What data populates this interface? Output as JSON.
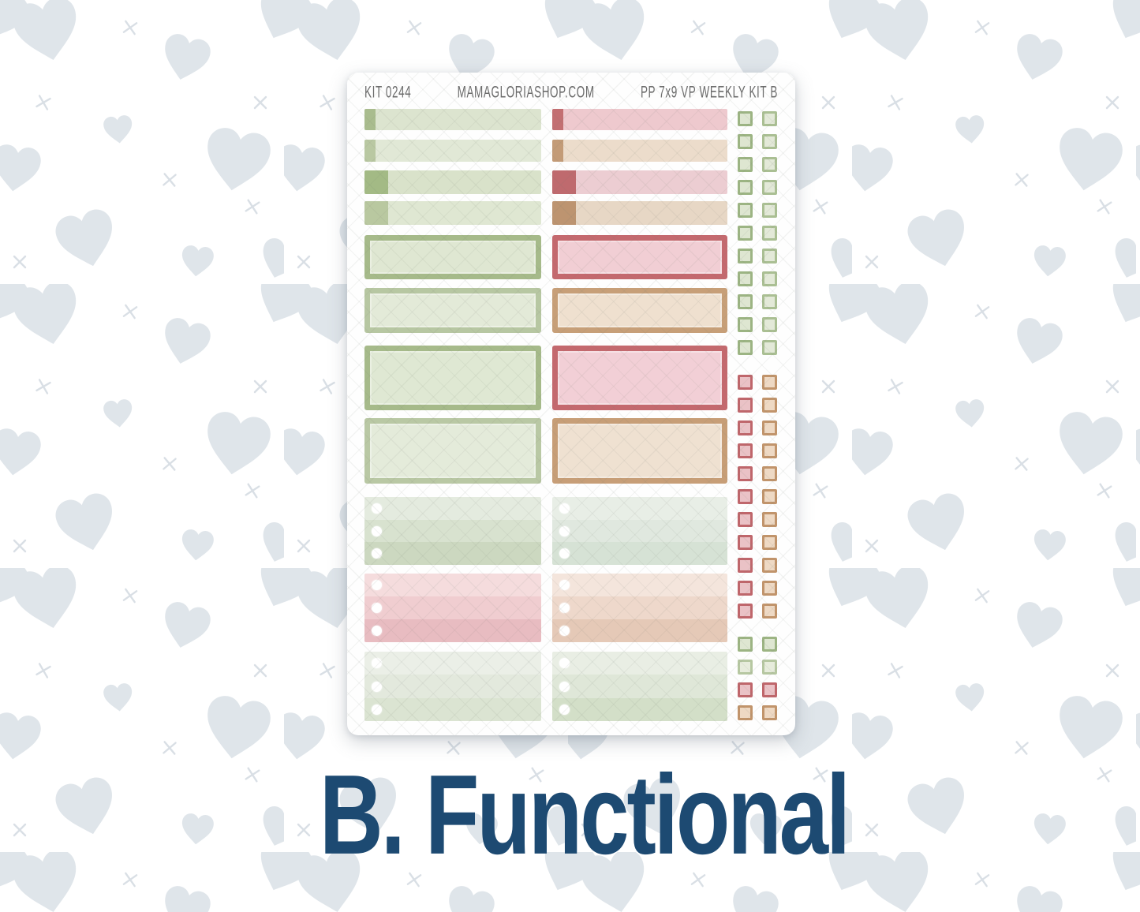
{
  "page": {
    "background_color": "#ffffff",
    "heart_color": "#dfe5ea",
    "cross_color": "#d9dfe5",
    "caption": {
      "label": "B. Functional",
      "color": "#1d4a72"
    }
  },
  "sheet": {
    "background": "#fefefe",
    "header": {
      "kit_code": "KIT 0244",
      "shop_url": "MAMAGLORIASHOP.COM",
      "kit_name": "PP 7x9 VP WEEKLY KIT B",
      "text_color": "#6b6b6b"
    },
    "stickers": {
      "strips_left": [
        {
          "accent": "#a9bc8e",
          "body": "#dce4cf",
          "accent_style": "thin"
        },
        {
          "accent": "#b9c8a2",
          "body": "#e1e8d6",
          "accent_style": "thin"
        },
        {
          "accent": "#a3ba85",
          "body": "#d9e2ca",
          "accent_style": "square"
        },
        {
          "accent": "#b9c8a0",
          "body": "#dfe7d2",
          "accent_style": "square"
        }
      ],
      "strips_right": [
        {
          "accent": "#c36f72",
          "body": "#eec9ce",
          "accent_style": "thin"
        },
        {
          "accent": "#c39b77",
          "body": "#ecdccb",
          "accent_style": "thin"
        },
        {
          "accent": "#bf6a6e",
          "body": "#eccdd2",
          "accent_style": "square"
        },
        {
          "accent": "#bd9470",
          "body": "#e7d7c5",
          "accent_style": "square"
        }
      ],
      "boxes_left": [
        {
          "border": "#a6ba8a",
          "fill": "#dfe7d2",
          "size": "short"
        },
        {
          "border": "#b7c7a2",
          "fill": "#e3ead8",
          "size": "short"
        },
        {
          "border": "#a6ba8a",
          "fill": "#dfe8d3",
          "size": "tall"
        },
        {
          "border": "#b9c8a4",
          "fill": "#e4ebda",
          "size": "tall"
        }
      ],
      "boxes_right": [
        {
          "border": "#c4696e",
          "fill": "#f1ced4",
          "size": "short"
        },
        {
          "border": "#c79f78",
          "fill": "#efe0cf",
          "size": "short"
        },
        {
          "border": "#c4696e",
          "fill": "#f2cfd6",
          "size": "tall"
        },
        {
          "border": "#c79e77",
          "fill": "#efe1d1",
          "size": "tall"
        }
      ],
      "checklists_left": [
        {
          "rows": [
            "#e4ebdf",
            "#d8e2cf",
            "#ccd8c0"
          ]
        },
        {
          "rows": [
            "#f5dcdd",
            "#f0cdd0",
            "#e8bcc1"
          ]
        },
        {
          "rows": [
            "#ebefe7",
            "#e3e9dd",
            "#dbe4d2"
          ]
        }
      ],
      "checklists_right": [
        {
          "rows": [
            "#e8eee6",
            "#e0e8df",
            "#d6e2d5"
          ]
        },
        {
          "rows": [
            "#f4e5dc",
            "#eed8cb",
            "#e5c9b7"
          ]
        },
        {
          "rows": [
            "#e9eee4",
            "#dfe7d8",
            "#d3dfc8"
          ]
        }
      ],
      "checkbox_swatches": {
        "green": {
          "border": "#9cb483",
          "fill": "#dee6d1"
        },
        "green_light": {
          "border": "#aabf93",
          "fill": "#e3e9d8"
        },
        "green_pale": {
          "border": "#b6c7a1",
          "fill": "#e7ecdc"
        },
        "red": {
          "border": "#bf666b",
          "fill": "#eac2c6"
        },
        "tan": {
          "border": "#c1946b",
          "fill": "#eed9c4"
        }
      },
      "checkbox_sections": [
        11,
        11,
        4
      ],
      "checkbox_rows": [
        {
          "l": "green",
          "r": "green_light"
        },
        {
          "l": "green",
          "r": "green_light"
        },
        {
          "l": "green",
          "r": "green_light"
        },
        {
          "l": "green",
          "r": "green_light"
        },
        {
          "l": "green",
          "r": "green_light"
        },
        {
          "l": "green",
          "r": "green_light"
        },
        {
          "l": "green",
          "r": "green_light"
        },
        {
          "l": "green",
          "r": "green_light"
        },
        {
          "l": "green",
          "r": "green_light"
        },
        {
          "l": "green",
          "r": "green_light"
        },
        {
          "l": "green",
          "r": "green_light"
        },
        {
          "l": "red",
          "r": "tan"
        },
        {
          "l": "red",
          "r": "tan"
        },
        {
          "l": "red",
          "r": "tan"
        },
        {
          "l": "red",
          "r": "tan"
        },
        {
          "l": "red",
          "r": "tan"
        },
        {
          "l": "red",
          "r": "tan"
        },
        {
          "l": "red",
          "r": "tan"
        },
        {
          "l": "red",
          "r": "tan"
        },
        {
          "l": "red",
          "r": "tan"
        },
        {
          "l": "red",
          "r": "tan"
        },
        {
          "l": "red",
          "r": "tan"
        },
        {
          "l": "green",
          "r": "green"
        },
        {
          "l": "green_pale",
          "r": "green_pale"
        },
        {
          "l": "red",
          "r": "red"
        },
        {
          "l": "tan",
          "r": "tan"
        }
      ]
    }
  }
}
